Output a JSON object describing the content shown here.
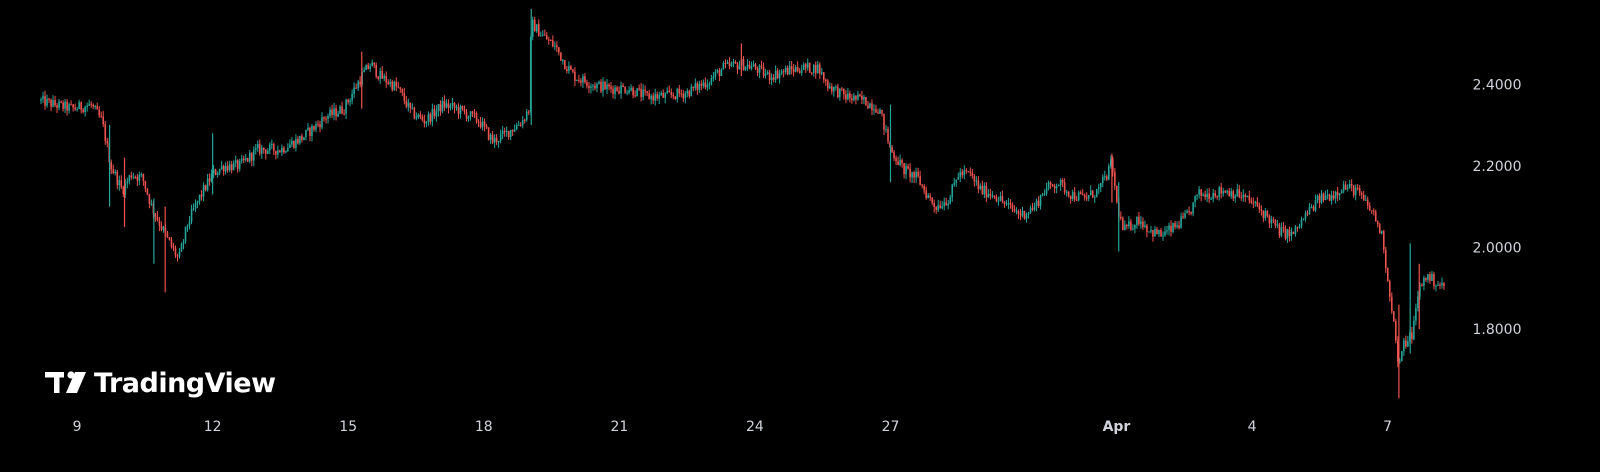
{
  "watermark": {
    "brand": "TradingView"
  },
  "colors": {
    "up": "#26a69a",
    "down": "#ef5350",
    "background": "#000000",
    "axis_text": "#d1d4dc",
    "logo": "#ffffff"
  },
  "chart_data": {
    "type": "candlestick",
    "x_ticks": [
      {
        "label": "9",
        "t": 0,
        "bold": false
      },
      {
        "label": "12",
        "t": 3,
        "bold": false
      },
      {
        "label": "15",
        "t": 6,
        "bold": false
      },
      {
        "label": "18",
        "t": 9,
        "bold": false
      },
      {
        "label": "21",
        "t": 12,
        "bold": false
      },
      {
        "label": "24",
        "t": 15,
        "bold": false
      },
      {
        "label": "27",
        "t": 18,
        "bold": false
      },
      {
        "label": "Apr",
        "t": 23,
        "bold": true
      },
      {
        "label": "4",
        "t": 26,
        "bold": false
      },
      {
        "label": "7",
        "t": 29,
        "bold": false
      }
    ],
    "y_ticks": [
      "2.4000",
      "2.2000",
      "2.0000",
      "1.8000"
    ],
    "y_tick_values": [
      2.4,
      2.2,
      2.0,
      1.8
    ],
    "x_range": [
      -0.82,
      30.27
    ],
    "y_range": [
      1.621,
      2.587
    ],
    "grid": false,
    "price_path": [
      [
        -0.82,
        2.36
      ],
      [
        -0.5,
        2.35
      ],
      [
        -0.1,
        2.34
      ],
      [
        0.3,
        2.35
      ],
      [
        0.55,
        2.31
      ],
      [
        0.75,
        2.2
      ],
      [
        1.0,
        2.14
      ],
      [
        1.2,
        2.18
      ],
      [
        1.45,
        2.17
      ],
      [
        1.65,
        2.1
      ],
      [
        2.0,
        2.02
      ],
      [
        2.25,
        1.97
      ],
      [
        2.45,
        2.06
      ],
      [
        2.7,
        2.12
      ],
      [
        3.0,
        2.18
      ],
      [
        3.25,
        2.2
      ],
      [
        3.6,
        2.2
      ],
      [
        4.0,
        2.24
      ],
      [
        4.5,
        2.24
      ],
      [
        5.0,
        2.27
      ],
      [
        5.5,
        2.32
      ],
      [
        5.9,
        2.34
      ],
      [
        6.3,
        2.42
      ],
      [
        6.5,
        2.45
      ],
      [
        6.7,
        2.42
      ],
      [
        7.1,
        2.39
      ],
      [
        7.4,
        2.33
      ],
      [
        7.7,
        2.31
      ],
      [
        8.1,
        2.35
      ],
      [
        8.4,
        2.34
      ],
      [
        8.9,
        2.31
      ],
      [
        9.2,
        2.26
      ],
      [
        9.5,
        2.28
      ],
      [
        9.85,
        2.31
      ],
      [
        10.0,
        2.34
      ],
      [
        10.05,
        2.55
      ],
      [
        10.3,
        2.52
      ],
      [
        10.6,
        2.49
      ],
      [
        10.8,
        2.45
      ],
      [
        11.0,
        2.42
      ],
      [
        11.4,
        2.4
      ],
      [
        11.8,
        2.39
      ],
      [
        12.2,
        2.39
      ],
      [
        12.6,
        2.37
      ],
      [
        13.0,
        2.37
      ],
      [
        13.5,
        2.38
      ],
      [
        14.0,
        2.41
      ],
      [
        14.3,
        2.44
      ],
      [
        14.7,
        2.45
      ],
      [
        15.0,
        2.44
      ],
      [
        15.3,
        2.42
      ],
      [
        15.6,
        2.43
      ],
      [
        16.0,
        2.44
      ],
      [
        16.4,
        2.44
      ],
      [
        16.6,
        2.4
      ],
      [
        17.0,
        2.37
      ],
      [
        17.4,
        2.36
      ],
      [
        17.75,
        2.34
      ],
      [
        18.0,
        2.24
      ],
      [
        18.3,
        2.19
      ],
      [
        18.6,
        2.17
      ],
      [
        18.8,
        2.13
      ],
      [
        19.0,
        2.1
      ],
      [
        19.3,
        2.12
      ],
      [
        19.5,
        2.18
      ],
      [
        19.75,
        2.18
      ],
      [
        20.0,
        2.14
      ],
      [
        20.3,
        2.13
      ],
      [
        20.6,
        2.1
      ],
      [
        20.9,
        2.08
      ],
      [
        21.2,
        2.1
      ],
      [
        21.4,
        2.14
      ],
      [
        21.7,
        2.16
      ],
      [
        22.0,
        2.13
      ],
      [
        22.3,
        2.12
      ],
      [
        22.6,
        2.14
      ],
      [
        22.8,
        2.18
      ],
      [
        22.9,
        2.21
      ],
      [
        23.0,
        2.11
      ],
      [
        23.15,
        2.04
      ],
      [
        23.5,
        2.07
      ],
      [
        23.75,
        2.04
      ],
      [
        24.0,
        2.03
      ],
      [
        24.3,
        2.05
      ],
      [
        24.6,
        2.08
      ],
      [
        24.8,
        2.13
      ],
      [
        25.0,
        2.13
      ],
      [
        25.4,
        2.14
      ],
      [
        25.7,
        2.13
      ],
      [
        26.0,
        2.11
      ],
      [
        26.3,
        2.08
      ],
      [
        26.6,
        2.04
      ],
      [
        26.9,
        2.03
      ],
      [
        27.2,
        2.08
      ],
      [
        27.5,
        2.12
      ],
      [
        27.8,
        2.13
      ],
      [
        28.0,
        2.15
      ],
      [
        28.3,
        2.14
      ],
      [
        28.5,
        2.11
      ],
      [
        28.7,
        2.08
      ],
      [
        28.9,
        2.02
      ],
      [
        29.0,
        1.92
      ],
      [
        29.1,
        1.85
      ],
      [
        29.25,
        1.7
      ],
      [
        29.35,
        1.76
      ],
      [
        29.55,
        1.79
      ],
      [
        29.7,
        1.9
      ],
      [
        29.85,
        1.93
      ],
      [
        30.0,
        1.92
      ],
      [
        30.27,
        1.9
      ]
    ],
    "spikes": [
      {
        "t": 0.72,
        "low": 2.1,
        "high": 2.3
      },
      {
        "t": 1.05,
        "low": 2.05,
        "high": 2.22
      },
      {
        "t": 1.7,
        "low": 1.96,
        "high": 2.12
      },
      {
        "t": 1.95,
        "low": 1.89,
        "high": 2.1
      },
      {
        "t": 3.0,
        "low": 2.13,
        "high": 2.28
      },
      {
        "t": 6.3,
        "low": 2.34,
        "high": 2.48
      },
      {
        "t": 10.05,
        "low": 2.3,
        "high": 2.585
      },
      {
        "t": 14.7,
        "low": 2.42,
        "high": 2.5
      },
      {
        "t": 18.0,
        "low": 2.16,
        "high": 2.35
      },
      {
        "t": 22.9,
        "low": 2.11,
        "high": 2.23
      },
      {
        "t": 23.05,
        "low": 1.99,
        "high": 2.16
      },
      {
        "t": 29.25,
        "low": 1.63,
        "high": 1.86
      },
      {
        "t": 29.5,
        "low": 1.74,
        "high": 2.01
      },
      {
        "t": 29.7,
        "low": 1.8,
        "high": 1.96
      }
    ]
  }
}
